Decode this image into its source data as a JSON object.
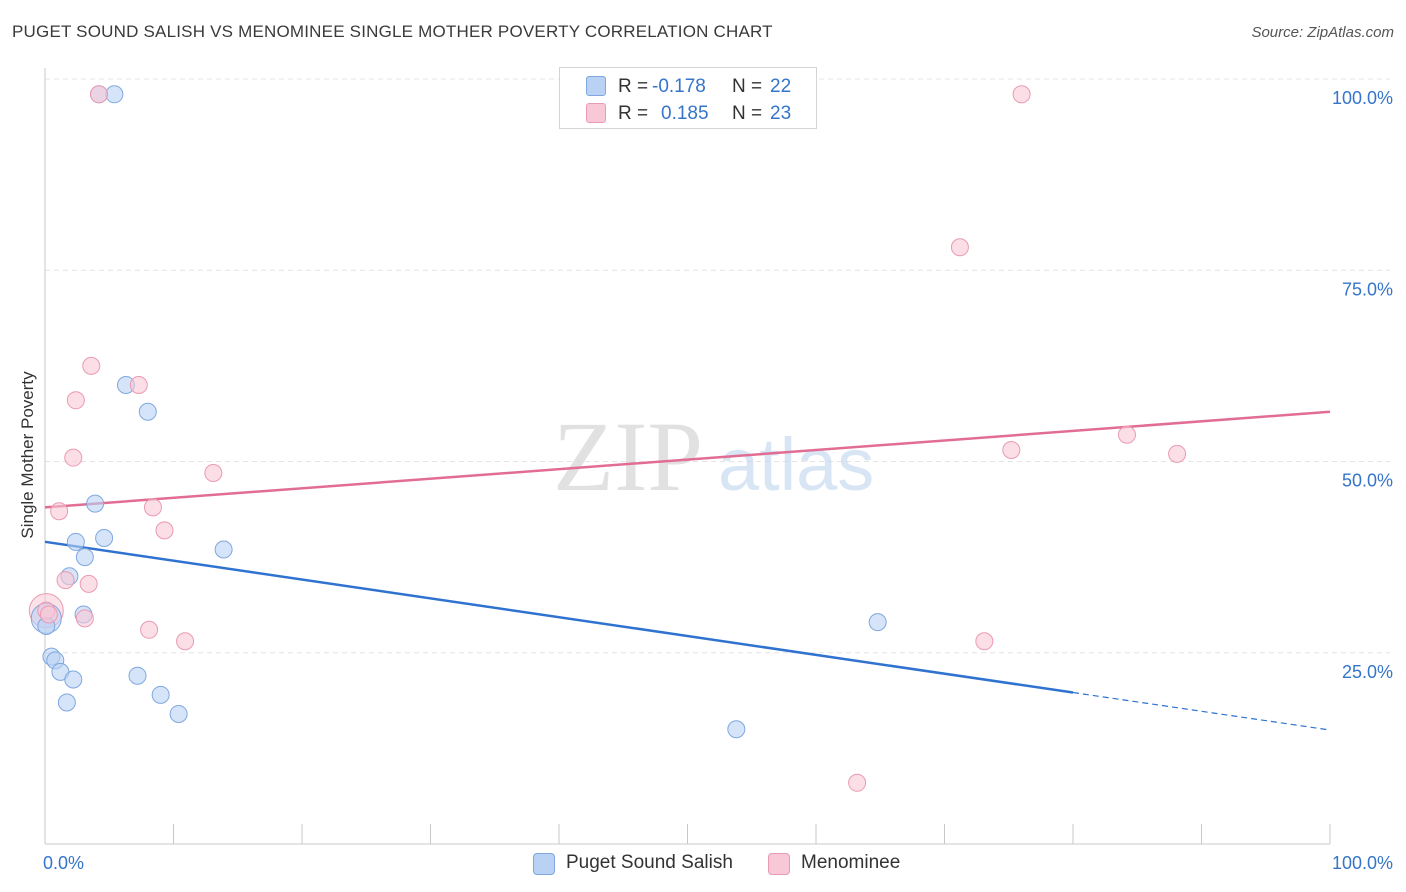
{
  "title": "PUGET SOUND SALISH VS MENOMINEE SINGLE MOTHER POVERTY CORRELATION CHART",
  "source": "Source: ZipAtlas.com",
  "watermark": {
    "zip": "ZIP",
    "atlas": "atlas"
  },
  "colors": {
    "blue_fill": "#b9d2f4",
    "blue_stroke": "#7fa8e0",
    "blue_line": "#2f72d0",
    "pink_fill": "#f8c8d6",
    "pink_stroke": "#eb9ab3",
    "pink_line": "#e26d93",
    "axis_text": "#3575c9",
    "grid": "#e4e4e4"
  },
  "legend": {
    "rows": [
      {
        "r_label": "R =",
        "r_value": "-0.178",
        "n_label": "N =",
        "n_value": "22"
      },
      {
        "r_label": "R =",
        "r_value": "0.185",
        "n_label": "N =",
        "n_value": "23"
      }
    ]
  },
  "bottom_legend": {
    "series1": "Puget Sound Salish",
    "series2": "Menominee"
  },
  "chart_data": {
    "type": "scatter",
    "title": "PUGET SOUND SALISH VS MENOMINEE SINGLE MOTHER POVERTY CORRELATION CHART",
    "xlabel": "",
    "ylabel": "Single Mother Poverty",
    "xlim": [
      0,
      100
    ],
    "ylim": [
      0,
      100
    ],
    "x_tick_labels": [
      "0.0%",
      "100.0%"
    ],
    "y_tick_labels": [
      "25.0%",
      "50.0%",
      "75.0%",
      "100.0%"
    ],
    "y_ticks": [
      25,
      50,
      75,
      100
    ],
    "grid": true,
    "legend_position": "top-center",
    "series": [
      {
        "name": "Puget Sound Salish",
        "color": "#b9d2f4",
        "points": [
          [
            4.2,
            98
          ],
          [
            5.4,
            98
          ],
          [
            0.1,
            28.5
          ],
          [
            0.5,
            24.5
          ],
          [
            0.8,
            24
          ],
          [
            1.2,
            22.5
          ],
          [
            1.7,
            18.5
          ],
          [
            2.2,
            21.5
          ],
          [
            1.9,
            35
          ],
          [
            2.4,
            39.5
          ],
          [
            3.1,
            37.5
          ],
          [
            3.0,
            30
          ],
          [
            3.9,
            44.5
          ],
          [
            4.6,
            40
          ],
          [
            6.3,
            60
          ],
          [
            8.0,
            56.5
          ],
          [
            7.2,
            22
          ],
          [
            9.0,
            19.5
          ],
          [
            10.4,
            17
          ],
          [
            13.9,
            38.5
          ],
          [
            64.8,
            29
          ],
          [
            53.8,
            15
          ]
        ],
        "trend": {
          "x1": 0,
          "y1": 39.5,
          "x2": 80,
          "y2": 19.8,
          "dash_to_x": 100,
          "dash_to_y": 14.9
        }
      },
      {
        "name": "Menominee",
        "color": "#f8c8d6",
        "points": [
          [
            4.2,
            98
          ],
          [
            76.0,
            98
          ],
          [
            71.2,
            78
          ],
          [
            3.6,
            62.5
          ],
          [
            2.4,
            58
          ],
          [
            7.3,
            60
          ],
          [
            2.2,
            50.5
          ],
          [
            1.1,
            43.5
          ],
          [
            8.4,
            44
          ],
          [
            13.1,
            48.5
          ],
          [
            9.3,
            41
          ],
          [
            3.4,
            34
          ],
          [
            1.6,
            34.5
          ],
          [
            3.1,
            29.5
          ],
          [
            8.1,
            28
          ],
          [
            10.9,
            26.5
          ],
          [
            0.1,
            30.5
          ],
          [
            0.3,
            30
          ],
          [
            75.2,
            51.5
          ],
          [
            84.2,
            53.5
          ],
          [
            88.1,
            51
          ],
          [
            73.1,
            26.5
          ],
          [
            63.2,
            8
          ]
        ],
        "trend": {
          "x1": 0,
          "y1": 44,
          "x2": 100,
          "y2": 56.5
        }
      }
    ]
  }
}
